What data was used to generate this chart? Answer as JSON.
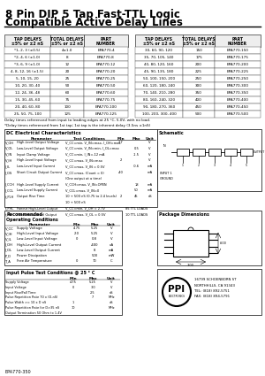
{
  "title_line1": "8 Pin DIP 5 Tap Fast-TTL Logic",
  "title_line2": "Compatible Active Delay Lines",
  "bg_color": "#ffffff",
  "table1_headers": [
    "TAP DELAYS\n±5% or ±2 nS",
    "TOTAL DELAYS\n±5% or ±2 nS",
    "PART\nNUMBER"
  ],
  "table1_rows": [
    [
      "*1, 2, 3 (±0.5)",
      "4±1.0",
      "EPA770-4"
    ],
    [
      "*2, 4, 6 (±1.0)",
      "8",
      "EPA770-8"
    ],
    [
      "*3, 6, 9 (±1.0)",
      "12",
      "EPA770-12"
    ],
    [
      "4, 8, 12, 16 (±1.5)",
      "20",
      "EPA770-20"
    ],
    [
      "5, 10, 15, 20",
      "25",
      "EPA770-25"
    ],
    [
      "10, 20, 30, 40",
      "50",
      "EPA770-50"
    ],
    [
      "12, 24, 36, 48",
      "60",
      "EPA770-60"
    ],
    [
      "15, 30, 45, 60",
      "75",
      "EPA770-75"
    ],
    [
      "20, 40, 60, 80",
      "100",
      "EPA770-100"
    ],
    [
      "25, 50, 75, 100",
      "125",
      "EPA770-125"
    ]
  ],
  "table2_rows": [
    [
      "30, 60, 90, 120",
      "150",
      "EPA770-150"
    ],
    [
      "35, 70, 105, 140",
      "175",
      "EPA770-175"
    ],
    [
      "40, 80, 120, 160",
      "200",
      "EPA770-200"
    ],
    [
      "45, 90, 135, 180",
      "225",
      "EPA770-225"
    ],
    [
      "50, 100, 150, 200",
      "250",
      "EPA770-250"
    ],
    [
      "60, 120, 180, 240",
      "300",
      "EPA770-300"
    ],
    [
      "70, 140, 210, 280",
      "350",
      "EPA770-350"
    ],
    [
      "80, 160, 240, 320",
      "400",
      "EPA770-400"
    ],
    [
      "90, 180, 270, 360",
      "450",
      "EPA770-450"
    ],
    [
      "100, 200, 300, 400",
      "500",
      "EPA770-500"
    ]
  ],
  "note1": "Delay times referenced from input to leading edges at 25 °C, 5.0V, with no load.",
  "note2": "*Delay times referenced from 1st tap; 1st tap is the inherent delay (3.5ns ±1nS)",
  "dc_title": "DC Electrical Characteristics",
  "rec_title1": "Recommended",
  "rec_title2": "Operating Conditions",
  "pkg_title": "Package Dimensions",
  "pulse_title": "Input Pulse Test Conditions @ 25 ° C",
  "company_addr1": "16799 SCHOENBORN ST",
  "company_addr2": "NORTHHILLS, CA 91343",
  "company_addr3": "TEL: (818) 892-5751",
  "company_addr4": "FAX: (818) 894-5791",
  "part_number": "EPA770-350"
}
